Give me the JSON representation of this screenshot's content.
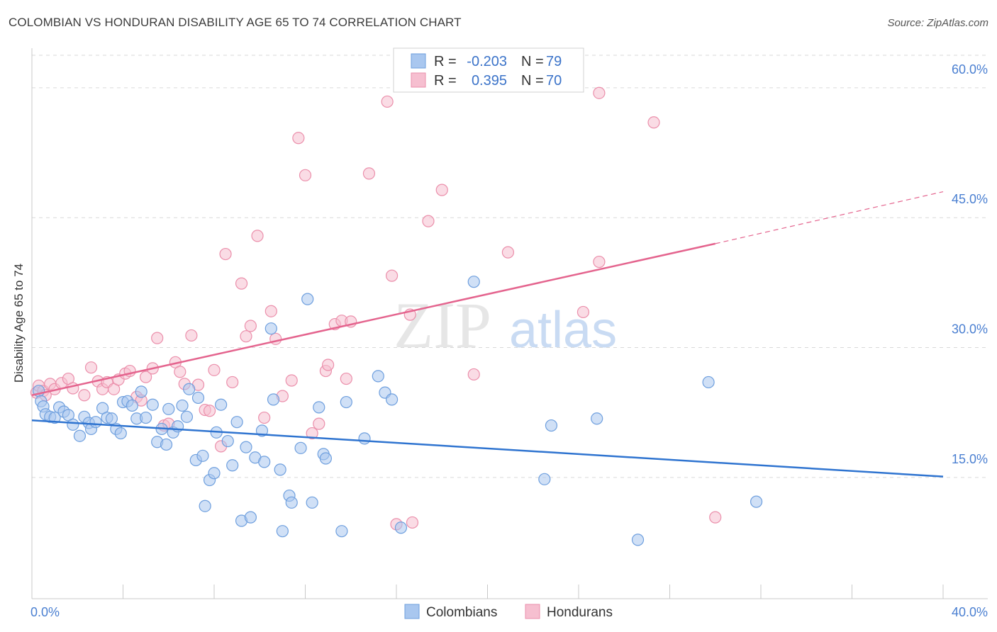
{
  "header": {
    "title": "COLOMBIAN VS HONDURAN DISABILITY AGE 65 TO 74 CORRELATION CHART",
    "source": "Source: ZipAtlas.com"
  },
  "watermark": {
    "zip": "ZIP",
    "atlas": "atlas"
  },
  "colors": {
    "colombians_fill": "#a9c7ef",
    "colombians_stroke": "#6e9fde",
    "colombians_line": "#2f74d0",
    "hondurans_fill": "#f6bfd0",
    "hondurans_stroke": "#eb8fab",
    "hondurans_line": "#e4648e",
    "grid": "#d9d9d9",
    "tick_text": "#4a7fd1"
  },
  "legend": {
    "rows": [
      {
        "r_label": "R =",
        "r_value": "-0.203",
        "n_label": "N =",
        "n_value": "79",
        "series": "colombians"
      },
      {
        "r_label": "R =",
        "r_value": "0.395",
        "n_label": "N =",
        "n_value": "70",
        "series": "hondurans"
      }
    ]
  },
  "bottom_legend": [
    "Colombians",
    "Hondurans"
  ],
  "chart_data": {
    "type": "scatter",
    "title": "COLOMBIAN VS HONDURAN DISABILITY AGE 65 TO 74 CORRELATION CHART",
    "xlabel": "",
    "ylabel": "Disability Age 65 to 74",
    "xlim": [
      0,
      40
    ],
    "ylim": [
      1,
      64
    ],
    "x_tick_labels": [
      {
        "value": 0,
        "label": "0.0%"
      },
      {
        "value": 40,
        "label": "40.0%"
      }
    ],
    "y_ticks": [
      {
        "value": 15,
        "label": "15.0%"
      },
      {
        "value": 30,
        "label": "30.0%"
      },
      {
        "value": 45,
        "label": "45.0%"
      },
      {
        "value": 60,
        "label": "60.0%"
      }
    ],
    "grid": "horizontal dashed",
    "series": [
      {
        "name": "Colombians",
        "r": -0.203,
        "n": 79,
        "trend": {
          "x": [
            0,
            40
          ],
          "y": [
            21.6,
            15.1
          ]
        },
        "points": [
          [
            0.3,
            25.0
          ],
          [
            0.4,
            23.8
          ],
          [
            0.5,
            23.2
          ],
          [
            0.6,
            22.3
          ],
          [
            0.8,
            22.0
          ],
          [
            1.0,
            21.9
          ],
          [
            1.2,
            23.1
          ],
          [
            1.4,
            22.6
          ],
          [
            1.6,
            22.2
          ],
          [
            1.8,
            21.1
          ],
          [
            2.1,
            19.8
          ],
          [
            2.3,
            22.0
          ],
          [
            2.5,
            21.3
          ],
          [
            2.6,
            20.6
          ],
          [
            2.8,
            21.4
          ],
          [
            3.1,
            23.0
          ],
          [
            3.3,
            21.9
          ],
          [
            3.5,
            21.8
          ],
          [
            3.7,
            20.6
          ],
          [
            3.9,
            20.1
          ],
          [
            4.0,
            23.7
          ],
          [
            4.2,
            23.8
          ],
          [
            4.4,
            23.3
          ],
          [
            4.6,
            21.8
          ],
          [
            4.8,
            24.9
          ],
          [
            5.0,
            21.9
          ],
          [
            5.3,
            23.4
          ],
          [
            5.5,
            19.1
          ],
          [
            5.7,
            20.6
          ],
          [
            5.9,
            18.8
          ],
          [
            6.0,
            22.9
          ],
          [
            6.2,
            20.2
          ],
          [
            6.4,
            20.9
          ],
          [
            6.6,
            23.3
          ],
          [
            6.8,
            22.0
          ],
          [
            6.9,
            25.2
          ],
          [
            7.2,
            17.0
          ],
          [
            7.3,
            24.2
          ],
          [
            7.5,
            17.5
          ],
          [
            7.6,
            11.7
          ],
          [
            7.8,
            14.7
          ],
          [
            8.0,
            15.5
          ],
          [
            8.1,
            20.2
          ],
          [
            8.3,
            23.4
          ],
          [
            8.6,
            19.2
          ],
          [
            8.8,
            16.4
          ],
          [
            9.0,
            21.4
          ],
          [
            9.2,
            10.0
          ],
          [
            9.4,
            18.5
          ],
          [
            9.6,
            10.4
          ],
          [
            9.8,
            17.3
          ],
          [
            10.1,
            20.4
          ],
          [
            10.2,
            16.8
          ],
          [
            10.5,
            32.2
          ],
          [
            10.6,
            24.0
          ],
          [
            10.9,
            15.9
          ],
          [
            11.0,
            8.8
          ],
          [
            11.3,
            12.9
          ],
          [
            11.4,
            12.1
          ],
          [
            11.8,
            18.4
          ],
          [
            12.1,
            35.6
          ],
          [
            12.3,
            12.1
          ],
          [
            12.6,
            23.1
          ],
          [
            12.8,
            17.7
          ],
          [
            12.9,
            17.2
          ],
          [
            13.6,
            8.8
          ],
          [
            13.8,
            23.7
          ],
          [
            14.6,
            19.5
          ],
          [
            15.2,
            26.7
          ],
          [
            15.5,
            24.8
          ],
          [
            15.8,
            24.0
          ],
          [
            16.2,
            9.2
          ],
          [
            19.4,
            37.6
          ],
          [
            22.5,
            14.8
          ],
          [
            22.8,
            21.0
          ],
          [
            24.8,
            21.8
          ],
          [
            26.6,
            7.8
          ],
          [
            29.7,
            26.0
          ],
          [
            31.8,
            12.2
          ]
        ]
      },
      {
        "name": "Hondurans",
        "r": 0.395,
        "n": 70,
        "trend": {
          "x": [
            0,
            30
          ],
          "y": [
            24.5,
            42.0
          ],
          "dashed_extension": {
            "x": [
              30,
              40
            ],
            "y": [
              42.0,
              48.0
            ]
          }
        },
        "points": [
          [
            0.2,
            24.8
          ],
          [
            0.3,
            25.6
          ],
          [
            0.5,
            25.0
          ],
          [
            0.6,
            24.5
          ],
          [
            0.8,
            25.8
          ],
          [
            1.0,
            25.2
          ],
          [
            1.3,
            25.9
          ],
          [
            1.6,
            26.4
          ],
          [
            1.8,
            25.3
          ],
          [
            2.3,
            24.5
          ],
          [
            2.6,
            27.7
          ],
          [
            2.9,
            26.1
          ],
          [
            3.1,
            25.2
          ],
          [
            3.3,
            26.0
          ],
          [
            3.6,
            25.2
          ],
          [
            3.8,
            26.3
          ],
          [
            4.1,
            27.0
          ],
          [
            4.3,
            27.3
          ],
          [
            4.6,
            24.3
          ],
          [
            4.8,
            23.9
          ],
          [
            5.0,
            26.6
          ],
          [
            5.3,
            27.6
          ],
          [
            5.5,
            31.1
          ],
          [
            5.8,
            21.0
          ],
          [
            6.0,
            21.2
          ],
          [
            6.3,
            28.3
          ],
          [
            6.5,
            27.2
          ],
          [
            6.7,
            25.8
          ],
          [
            7.0,
            31.4
          ],
          [
            7.3,
            25.7
          ],
          [
            7.6,
            22.8
          ],
          [
            7.8,
            22.7
          ],
          [
            8.0,
            27.4
          ],
          [
            8.3,
            18.6
          ],
          [
            8.5,
            40.8
          ],
          [
            8.8,
            26.0
          ],
          [
            9.2,
            37.4
          ],
          [
            9.4,
            31.3
          ],
          [
            9.6,
            32.5
          ],
          [
            9.9,
            42.9
          ],
          [
            10.2,
            21.9
          ],
          [
            10.5,
            34.2
          ],
          [
            10.7,
            31.0
          ],
          [
            11.0,
            24.4
          ],
          [
            11.4,
            26.2
          ],
          [
            11.7,
            54.2
          ],
          [
            12.0,
            49.9
          ],
          [
            12.3,
            20.1
          ],
          [
            12.6,
            21.2
          ],
          [
            12.9,
            27.3
          ],
          [
            13.0,
            28.0
          ],
          [
            13.3,
            32.7
          ],
          [
            13.6,
            33.1
          ],
          [
            13.8,
            26.4
          ],
          [
            14.0,
            33.0
          ],
          [
            14.8,
            50.1
          ],
          [
            15.6,
            58.4
          ],
          [
            15.8,
            38.3
          ],
          [
            16.0,
            9.6
          ],
          [
            16.6,
            33.8
          ],
          [
            16.7,
            9.8
          ],
          [
            17.4,
            44.6
          ],
          [
            18.0,
            48.2
          ],
          [
            19.4,
            26.9
          ],
          [
            20.9,
            41.0
          ],
          [
            24.2,
            34.1
          ],
          [
            24.9,
            39.9
          ],
          [
            24.9,
            59.4
          ],
          [
            27.3,
            56.0
          ],
          [
            30.0,
            10.4
          ]
        ]
      }
    ]
  }
}
